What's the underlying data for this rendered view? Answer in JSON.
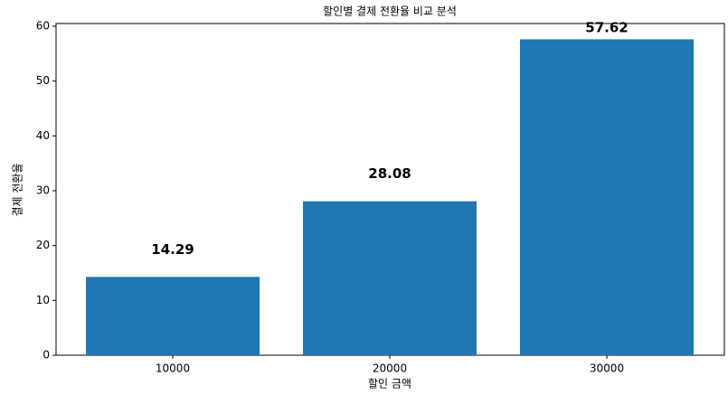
{
  "chart_data": {
    "type": "bar",
    "title": "할인별 결제 전환율 비교 분석",
    "x_label": "할인 금액",
    "y_label": "결제 전환율",
    "categories": [
      "10000",
      "20000",
      "30000"
    ],
    "values": [
      14.29,
      28.08,
      57.62
    ],
    "color": "#1f77b4",
    "ylim": [
      0,
      60.5
    ],
    "yticks": [
      0,
      10,
      20,
      30,
      40,
      50,
      60
    ]
  }
}
